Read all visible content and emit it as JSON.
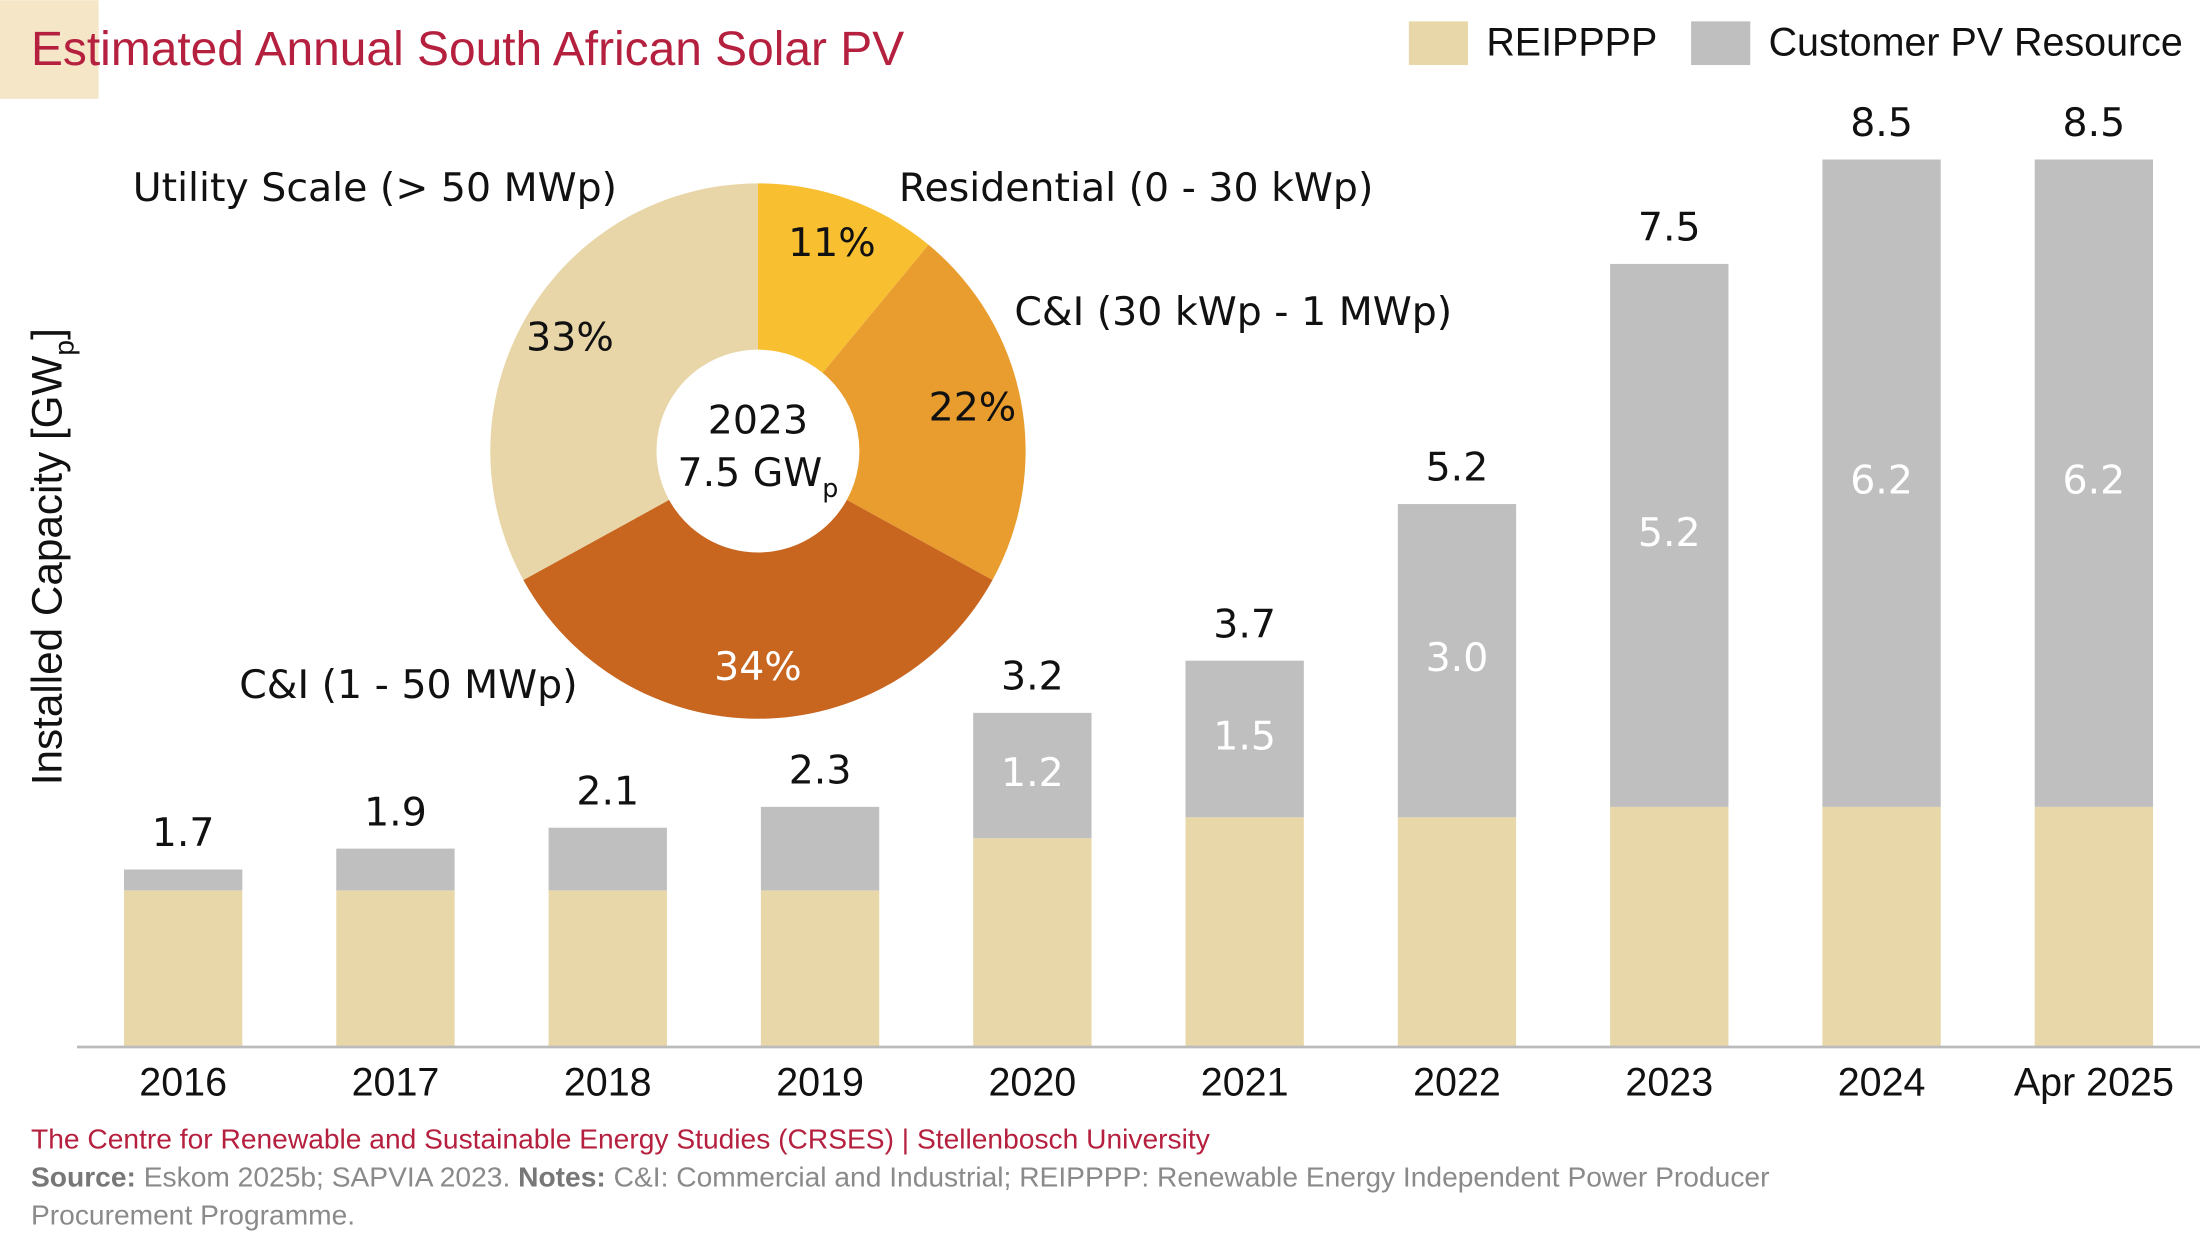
{
  "chart_data": [
    {
      "type": "bar",
      "stacked": true,
      "title": "Estimated Annual South African Solar PV",
      "y_label": [
        "Installed Capacity [GW",
        "p",
        "]"
      ],
      "categories": [
        "2016",
        "2017",
        "2018",
        "2019",
        "2020",
        "2021",
        "2022",
        "2023",
        "2024",
        "Apr 2025"
      ],
      "series": [
        {
          "name": "REIPPPP",
          "color": "#e8d7a8",
          "values": [
            1.5,
            1.5,
            1.5,
            1.5,
            2.0,
            2.2,
            2.2,
            2.3,
            2.3,
            2.3
          ]
        },
        {
          "name": "Customer PV Resource",
          "color": "#bfbfbf",
          "values": [
            0.2,
            0.4,
            0.6,
            0.8,
            1.2,
            1.5,
            3.0,
            5.2,
            6.2,
            6.2
          ],
          "value_labels": [
            null,
            null,
            null,
            null,
            "1.2",
            "1.5",
            "3.0",
            "5.2",
            "6.2",
            "6.2"
          ]
        }
      ],
      "totals": [
        1.7,
        1.9,
        2.1,
        2.3,
        3.2,
        3.7,
        5.2,
        7.5,
        8.5,
        8.5
      ],
      "ylim": [
        0,
        9
      ],
      "grid": false,
      "legend": "top-right"
    },
    {
      "type": "pie",
      "donut": true,
      "center_label": [
        "2023",
        "7.5 GW",
        "p"
      ],
      "categories": [
        "Residential (0 - 30 kWp)",
        "C&I (30 kWp - 1 MWp)",
        "C&I (1 - 50 MWp)",
        "Utility Scale (> 50 MWp)"
      ],
      "values": [
        11,
        22,
        34,
        33
      ],
      "value_labels": [
        "11%",
        "22%",
        "34%",
        "33%"
      ],
      "colors": [
        "#f8bf30",
        "#e89d2e",
        "#c8651f",
        "#e8d6a8"
      ],
      "value_label_colors": [
        "#111111",
        "#111111",
        "#ffffff",
        "#111111"
      ]
    }
  ],
  "footer": {
    "credit": "The Centre for Renewable and Sustainable Energy Studies (CRSES) | Stellenbosch University",
    "source_label": "Source:",
    "source": "Eskom 2025b; SAPVIA 2023.",
    "notes_label": "Notes:",
    "notes": "C&I: Commercial and Industrial; REIPPPP: Renewable Energy Independent Power Producer Procurement Programme."
  }
}
